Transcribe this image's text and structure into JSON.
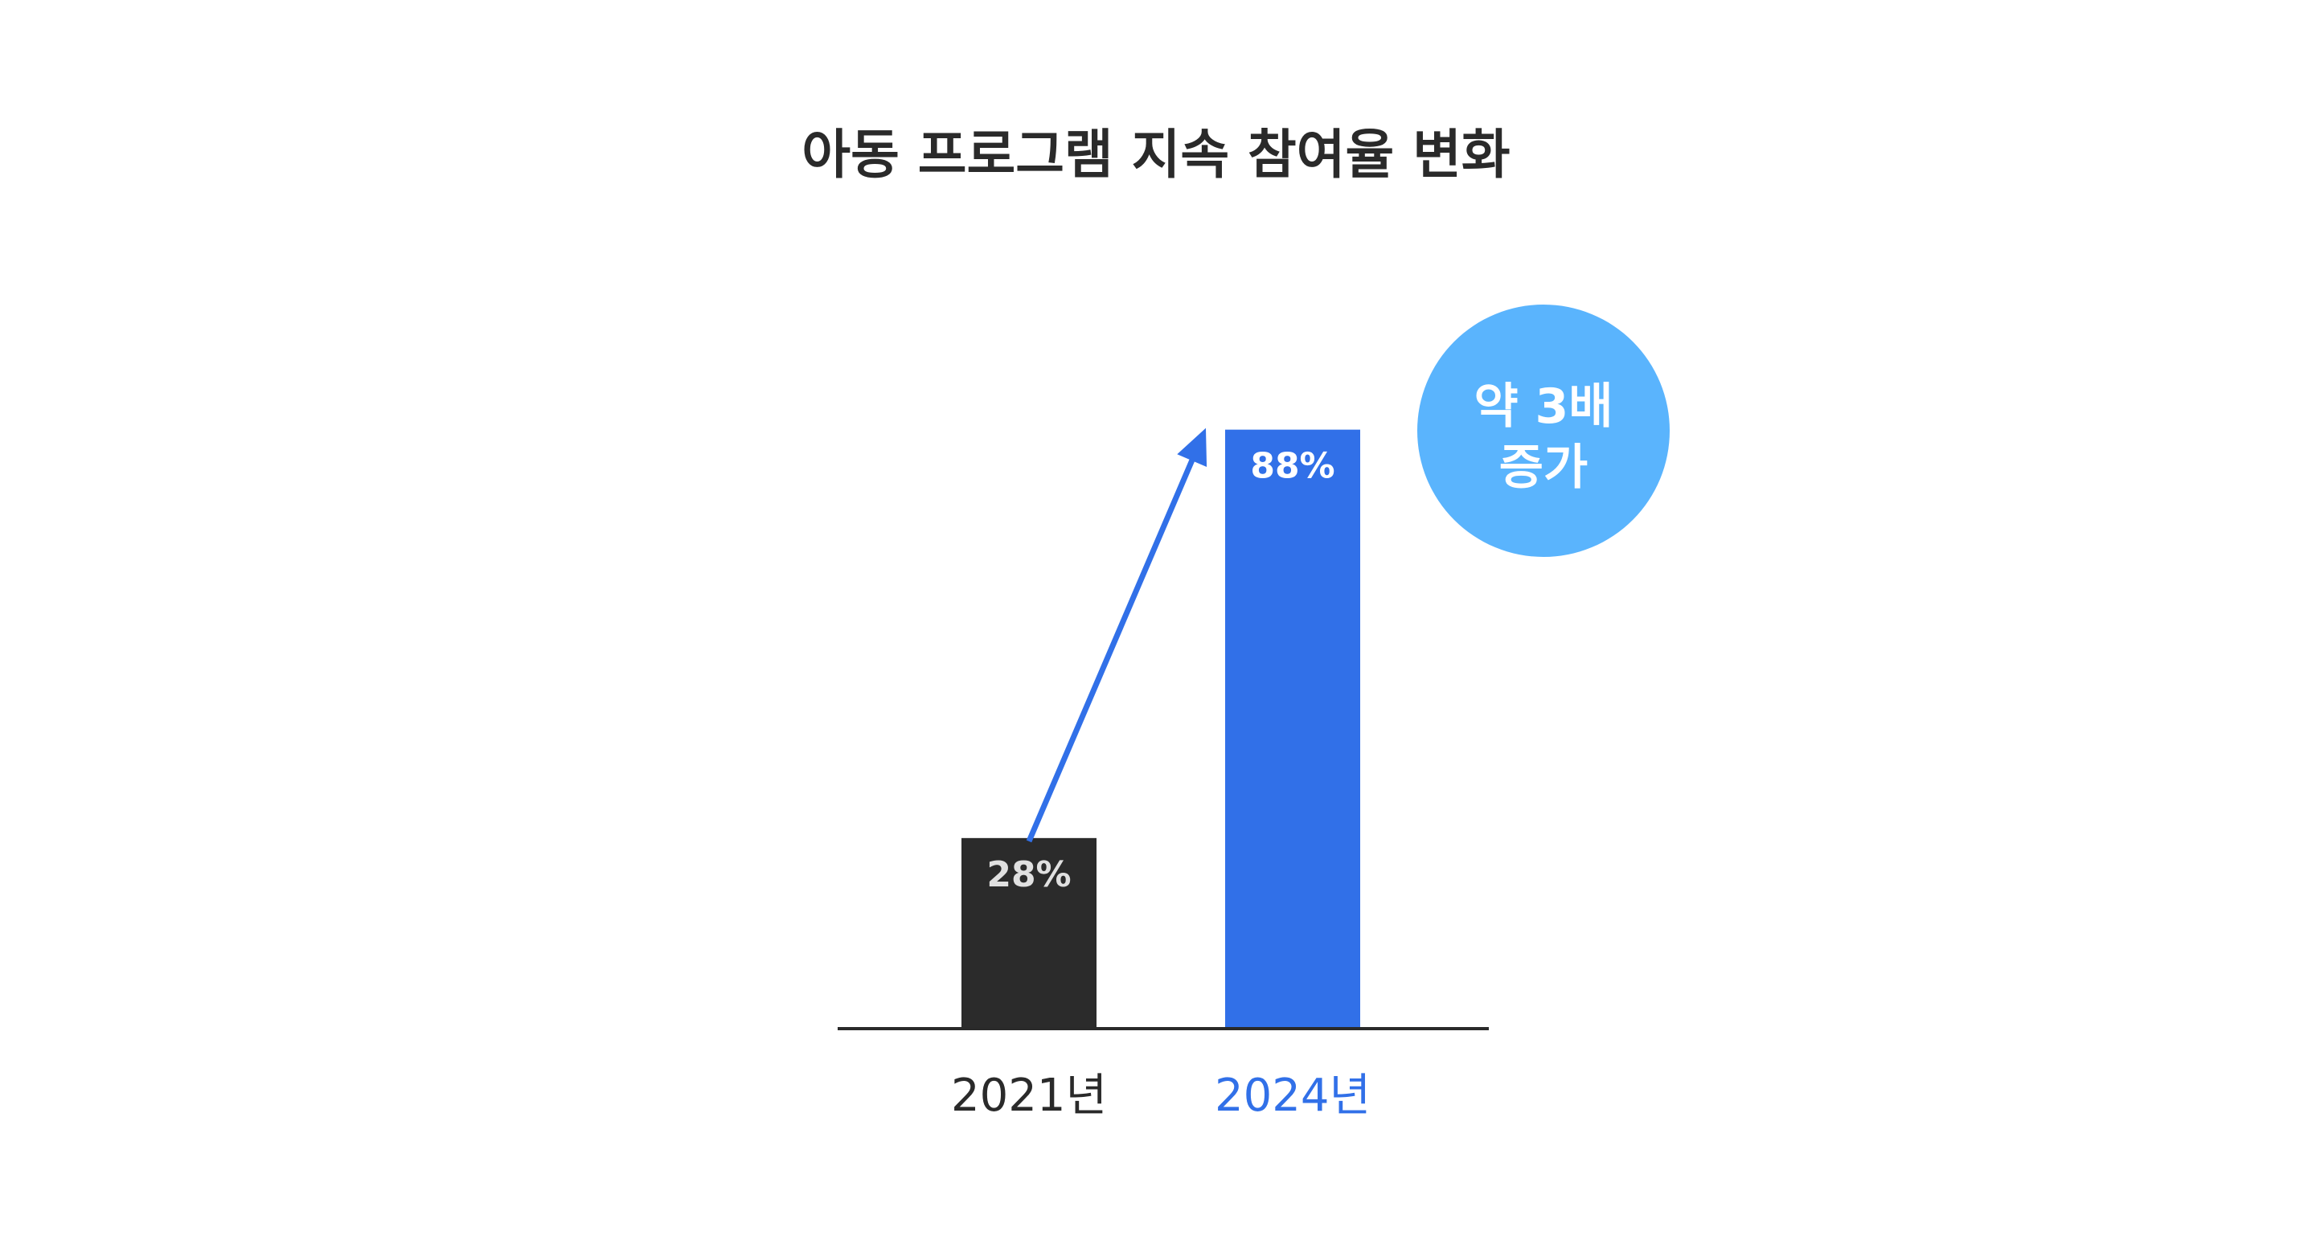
{
  "chart_data": {
    "type": "bar",
    "title": "아동 프로그램 지속 참여율 변화",
    "categories": [
      "2021년",
      "2024년"
    ],
    "values": [
      28,
      88
    ],
    "value_labels": [
      "28%",
      "88%"
    ],
    "unit": "%",
    "ylim": [
      0,
      100
    ],
    "grid": false,
    "legend": "none",
    "annotation": {
      "type": "arrow",
      "from": "2021년",
      "to": "2024년",
      "badge_lines": [
        "약 3배",
        "증가"
      ]
    }
  },
  "colors": {
    "bar_2021": "#2b2b2b",
    "bar_2024": "#3170e8",
    "label_2021": "#e0e0e0",
    "label_2024": "#ffffff",
    "tick_2021": "#2a2a2a",
    "tick_2024": "#3170e8",
    "arrow": "#3170e8",
    "badge": "#5ab4fd",
    "baseline": "#2a2a2a",
    "title": "#2a2a2a"
  }
}
